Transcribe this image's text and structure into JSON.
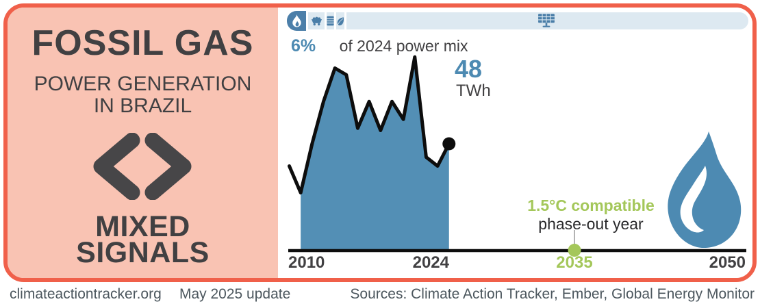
{
  "colors": {
    "accent_orange": "#f0604a",
    "panel_pink": "#f9c3b3",
    "steel_blue": "#4d8ab2",
    "chart_blue": "#538fb5",
    "pale_blue": "#dde9f1",
    "bar_dark_blue": "#4c7fa9",
    "green": "#a4c75a",
    "ink": "#414042",
    "near_black": "#0d0d0d",
    "footer_gray": "#4c575e"
  },
  "left_panel": {
    "title": "FOSSIL GAS",
    "subtitle_line1": "POWER GENERATION",
    "subtitle_line2": "IN BRAZIL",
    "verdict_line1": "MIXED",
    "verdict_line2": "SIGNALS"
  },
  "mix": {
    "share_label": "6%",
    "caption": "of 2024 power mix"
  },
  "chart": {
    "value_label": "48",
    "unit_label": "TWh",
    "phaseout_line1": "1.5°C compatible",
    "phaseout_line2": "phase-out year",
    "tick_2010": "2010",
    "tick_2024": "2024",
    "tick_2035": "2035",
    "tick_2050": "2050"
  },
  "footer": {
    "site": "climateactiontracker.org",
    "update": "May 2025 update",
    "sources": "Sources: Climate Action Tracker, Ember, Global Energy Monitor"
  },
  "icons": [
    "flame-icon",
    "coal-cart-icon",
    "oil-barrel-icon",
    "leaf-icon",
    "solar-panel-icon",
    "mixed-signals-icon",
    "gas-flame-icon"
  ],
  "chart_data": {
    "type": "area",
    "title": "FOSSIL GAS POWER GENERATION IN BRAZIL",
    "unit": "TWh",
    "x": [
      2010,
      2011,
      2012,
      2013,
      2014,
      2015,
      2016,
      2017,
      2018,
      2019,
      2020,
      2021,
      2022,
      2023,
      2024
    ],
    "values": [
      38,
      26,
      48,
      67,
      82,
      79,
      55,
      67,
      54,
      67,
      59,
      87,
      42,
      38,
      48
    ],
    "latest": {
      "year": 2024,
      "value": 48,
      "label": "48 TWh"
    },
    "share_of_2024_power_mix": "6%",
    "phase_out": {
      "year": 2035,
      "label": "1.5°C compatible phase-out year"
    },
    "x_axis": {
      "range": [
        2010,
        2050
      ],
      "ticks": [
        2010,
        2024,
        2035,
        2050
      ]
    },
    "y_axis": {
      "range": [
        0,
        100
      ],
      "visible": false
    },
    "grid": false,
    "legend": false
  }
}
